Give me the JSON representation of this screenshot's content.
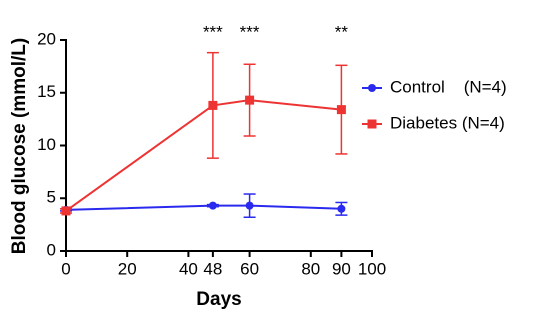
{
  "chart_data": {
    "type": "line",
    "x_label": "Days",
    "y_label": "Blood glucose (mmol/L)",
    "x": [
      0,
      48,
      60,
      90
    ],
    "series": [
      {
        "name": "Control    (N=4)",
        "color": "#2a2aee",
        "marker": "circle",
        "values": [
          3.9,
          4.3,
          4.3,
          4.0
        ],
        "errors": [
          0.1,
          0.1,
          1.1,
          0.6
        ]
      },
      {
        "name": "Diabetes (N=4)",
        "color": "#ee3333",
        "marker": "square",
        "values": [
          3.8,
          13.8,
          14.3,
          13.4
        ],
        "errors": [
          0.2,
          5.0,
          3.4,
          4.2
        ]
      }
    ],
    "annotations": [
      {
        "text": "***",
        "x": 48
      },
      {
        "text": "***",
        "x": 60
      },
      {
        "text": "**",
        "x": 90
      }
    ],
    "xlim": [
      0,
      100
    ],
    "xticks": [
      0,
      20,
      40,
      48,
      60,
      80,
      90,
      100
    ],
    "ylim": [
      0,
      20
    ],
    "yticks": [
      0,
      5,
      10,
      15,
      20
    ],
    "legend": "right"
  }
}
